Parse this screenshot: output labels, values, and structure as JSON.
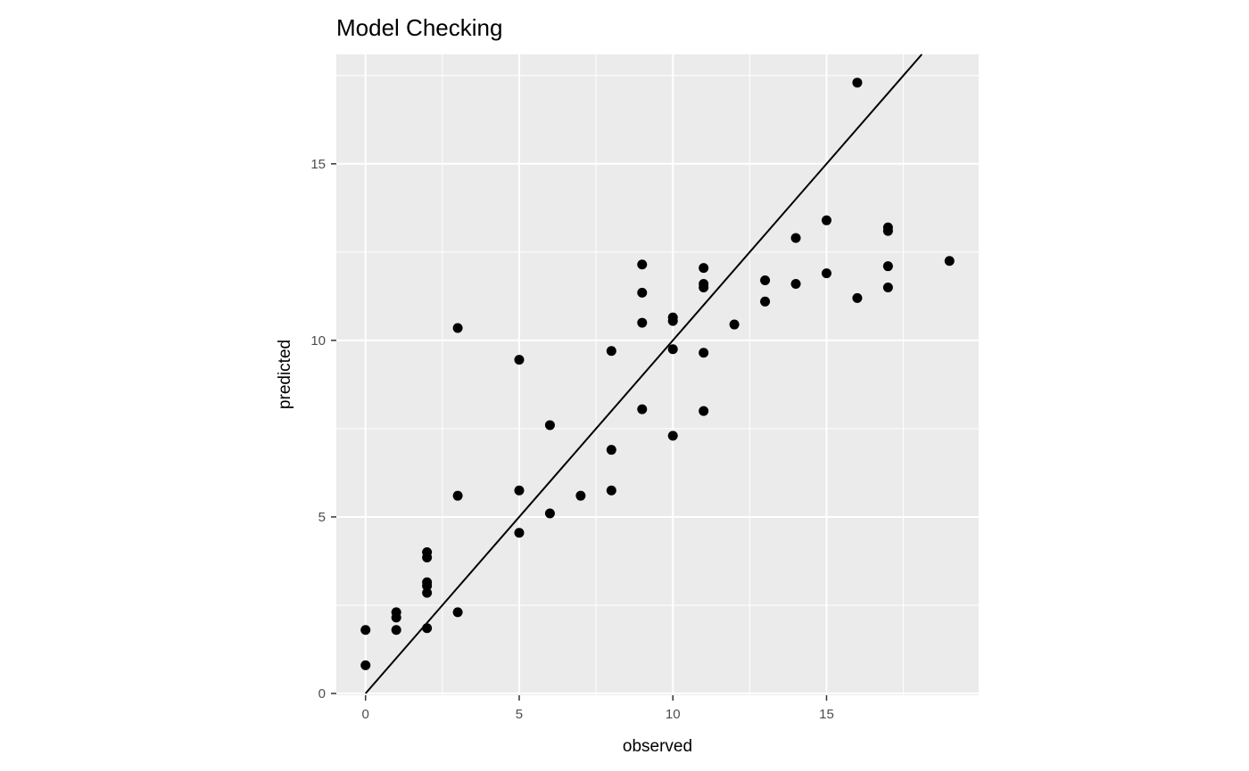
{
  "chart_data": {
    "type": "scatter",
    "title": "Model Checking",
    "xlabel": "observed",
    "ylabel": "predicted",
    "xlim": [
      -0.95,
      19.95
    ],
    "ylim": [
      -0.05,
      18.1
    ],
    "x_ticks": [
      0,
      5,
      10,
      15
    ],
    "y_ticks": [
      0,
      5,
      10,
      15
    ],
    "x_minor": [
      2.5,
      7.5,
      12.5,
      17.5
    ],
    "y_minor": [
      2.5,
      7.5,
      12.5,
      17.5
    ],
    "grid": true,
    "panel_background": "#ebebeb",
    "grid_color": "#ffffff",
    "point_color": "#000000",
    "reference_line": {
      "slope": 1,
      "intercept": 0,
      "from": 0
    },
    "points": [
      {
        "x": 0,
        "y": 1.8
      },
      {
        "x": 0,
        "y": 0.8
      },
      {
        "x": 1,
        "y": 2.3
      },
      {
        "x": 1,
        "y": 2.15
      },
      {
        "x": 1,
        "y": 1.8
      },
      {
        "x": 2,
        "y": 4.0
      },
      {
        "x": 2,
        "y": 3.85
      },
      {
        "x": 2,
        "y": 3.15
      },
      {
        "x": 2,
        "y": 3.05
      },
      {
        "x": 2,
        "y": 2.85
      },
      {
        "x": 2,
        "y": 1.85
      },
      {
        "x": 3,
        "y": 10.35
      },
      {
        "x": 3,
        "y": 5.6
      },
      {
        "x": 3,
        "y": 2.3
      },
      {
        "x": 5,
        "y": 9.45
      },
      {
        "x": 5,
        "y": 5.75
      },
      {
        "x": 5,
        "y": 4.55
      },
      {
        "x": 6,
        "y": 7.6
      },
      {
        "x": 6,
        "y": 5.1
      },
      {
        "x": 7,
        "y": 5.6
      },
      {
        "x": 8,
        "y": 9.7
      },
      {
        "x": 8,
        "y": 6.9
      },
      {
        "x": 8,
        "y": 5.75
      },
      {
        "x": 9,
        "y": 12.15
      },
      {
        "x": 9,
        "y": 11.35
      },
      {
        "x": 9,
        "y": 10.5
      },
      {
        "x": 9,
        "y": 8.05
      },
      {
        "x": 10,
        "y": 10.65
      },
      {
        "x": 10,
        "y": 10.55
      },
      {
        "x": 10,
        "y": 9.75
      },
      {
        "x": 10,
        "y": 7.3
      },
      {
        "x": 11,
        "y": 12.05
      },
      {
        "x": 11,
        "y": 11.6
      },
      {
        "x": 11,
        "y": 11.5
      },
      {
        "x": 11,
        "y": 9.65
      },
      {
        "x": 11,
        "y": 8.0
      },
      {
        "x": 12,
        "y": 10.45
      },
      {
        "x": 13,
        "y": 11.7
      },
      {
        "x": 13,
        "y": 11.1
      },
      {
        "x": 14,
        "y": 12.9
      },
      {
        "x": 14,
        "y": 11.6
      },
      {
        "x": 15,
        "y": 13.4
      },
      {
        "x": 15,
        "y": 11.9
      },
      {
        "x": 16,
        "y": 17.3
      },
      {
        "x": 16,
        "y": 11.2
      },
      {
        "x": 17,
        "y": 13.2
      },
      {
        "x": 17,
        "y": 13.1
      },
      {
        "x": 17,
        "y": 12.1
      },
      {
        "x": 17,
        "y": 11.5
      },
      {
        "x": 19,
        "y": 12.25
      }
    ]
  }
}
